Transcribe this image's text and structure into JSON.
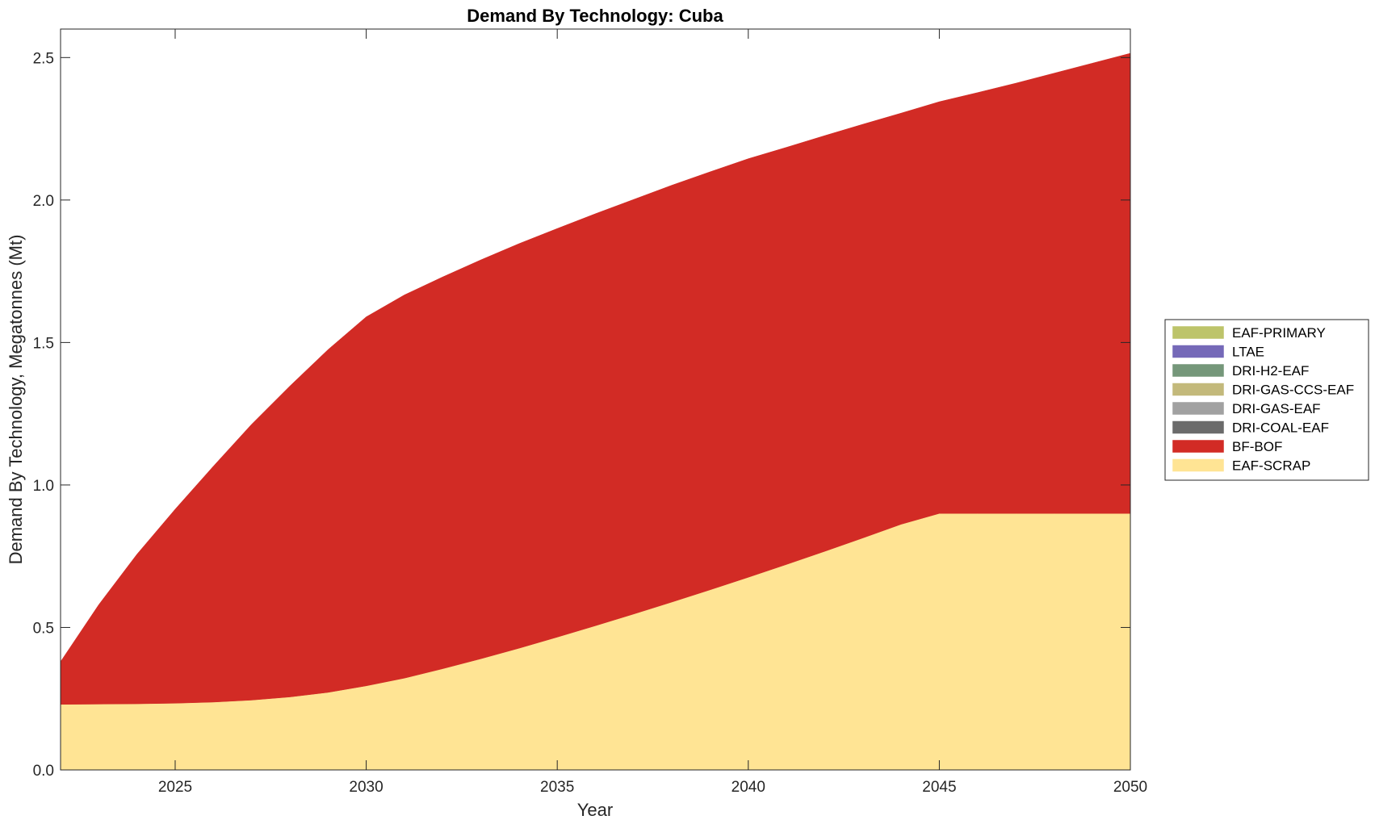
{
  "chart_data": {
    "type": "area",
    "title": "Demand By Technology: Cuba",
    "xlabel": "Year",
    "ylabel": "Demand By Technology, Megatonnes (Mt)",
    "xlim": [
      2022,
      2050
    ],
    "ylim": [
      0,
      2.6
    ],
    "xticks": [
      2025,
      2030,
      2035,
      2040,
      2045,
      2050
    ],
    "yticks": [
      0.0,
      0.5,
      1.0,
      1.5,
      2.0,
      2.5
    ],
    "ytick_labels": [
      "0.0",
      "0.5",
      "1.0",
      "1.5",
      "2.0",
      "2.5"
    ],
    "legend_position": "right",
    "x": [
      2022,
      2023,
      2024,
      2025,
      2026,
      2027,
      2028,
      2029,
      2030,
      2031,
      2032,
      2033,
      2034,
      2035,
      2036,
      2037,
      2038,
      2039,
      2040,
      2041,
      2042,
      2043,
      2044,
      2045,
      2046,
      2047,
      2048,
      2049,
      2050
    ],
    "series": [
      {
        "name": "EAF-SCRAP",
        "color": "#FFE494",
        "values": [
          0.23,
          0.231,
          0.232,
          0.234,
          0.238,
          0.245,
          0.256,
          0.272,
          0.295,
          0.322,
          0.355,
          0.39,
          0.427,
          0.466,
          0.506,
          0.547,
          0.589,
          0.632,
          0.676,
          0.721,
          0.767,
          0.814,
          0.862,
          0.9,
          0.9,
          0.9,
          0.9,
          0.9,
          0.9
        ]
      },
      {
        "name": "BF-BOF",
        "color": "#D22B25",
        "values": [
          0.15,
          0.349,
          0.525,
          0.681,
          0.828,
          0.968,
          1.091,
          1.203,
          1.295,
          1.345,
          1.375,
          1.4,
          1.42,
          1.434,
          1.446,
          1.455,
          1.463,
          1.467,
          1.469,
          1.464,
          1.459,
          1.452,
          1.443,
          1.445,
          1.477,
          1.51,
          1.545,
          1.58,
          1.615
        ]
      },
      {
        "name": "DRI-COAL-EAF",
        "color": "#6B6B6B",
        "values": [
          0,
          0,
          0,
          0,
          0,
          0,
          0,
          0,
          0,
          0,
          0,
          0,
          0,
          0,
          0,
          0,
          0,
          0,
          0,
          0,
          0,
          0,
          0,
          0,
          0,
          0,
          0,
          0,
          0
        ]
      },
      {
        "name": "DRI-GAS-EAF",
        "color": "#A1A1A1",
        "values": [
          0,
          0,
          0,
          0,
          0,
          0,
          0,
          0,
          0,
          0,
          0,
          0,
          0,
          0,
          0,
          0,
          0,
          0,
          0,
          0,
          0,
          0,
          0,
          0,
          0,
          0,
          0,
          0,
          0
        ]
      },
      {
        "name": "DRI-GAS-CCS-EAF",
        "color": "#C3B97B",
        "values": [
          0,
          0,
          0,
          0,
          0,
          0,
          0,
          0,
          0,
          0,
          0,
          0,
          0,
          0,
          0,
          0,
          0,
          0,
          0,
          0,
          0,
          0,
          0,
          0,
          0,
          0,
          0,
          0,
          0
        ]
      },
      {
        "name": "DRI-H2-EAF",
        "color": "#75977A",
        "values": [
          0,
          0,
          0,
          0,
          0,
          0,
          0,
          0,
          0,
          0,
          0,
          0,
          0,
          0,
          0,
          0,
          0,
          0,
          0,
          0,
          0,
          0,
          0,
          0,
          0,
          0,
          0,
          0,
          0
        ]
      },
      {
        "name": "LTAE",
        "color": "#7569B8",
        "values": [
          0,
          0,
          0,
          0,
          0,
          0,
          0,
          0,
          0,
          0,
          0,
          0,
          0,
          0,
          0,
          0,
          0,
          0,
          0,
          0,
          0,
          0,
          0,
          0,
          0,
          0,
          0,
          0,
          0
        ]
      },
      {
        "name": "EAF-PRIMARY",
        "color": "#BDC46A",
        "values": [
          0,
          0,
          0,
          0,
          0,
          0,
          0,
          0,
          0,
          0,
          0,
          0,
          0,
          0,
          0,
          0,
          0,
          0,
          0,
          0,
          0,
          0,
          0,
          0,
          0,
          0,
          0,
          0,
          0
        ]
      }
    ],
    "legend_order": [
      "EAF-PRIMARY",
      "LTAE",
      "DRI-H2-EAF",
      "DRI-GAS-CCS-EAF",
      "DRI-GAS-EAF",
      "DRI-COAL-EAF",
      "BF-BOF",
      "EAF-SCRAP"
    ]
  }
}
